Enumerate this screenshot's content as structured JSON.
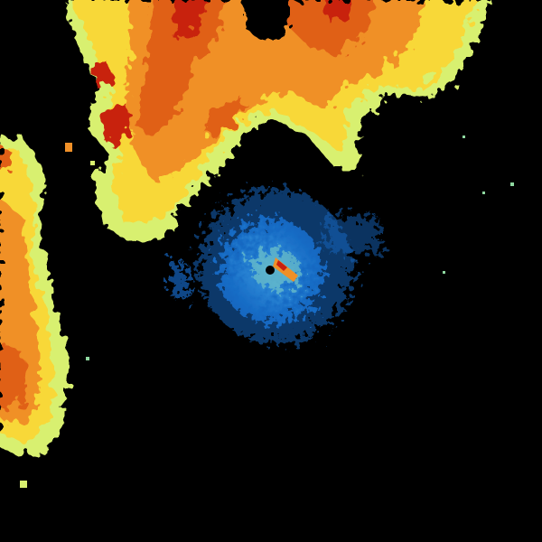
{
  "radar": {
    "background": "#000000",
    "palette": {
      "light_blue": "#2f8fd8",
      "blue": "#1566c0",
      "cyan_green": "#8fd8a0",
      "yellow_green": "#d8f070",
      "yellow": "#f8d838",
      "orange": "#f09028",
      "dark_orange": "#e06018",
      "red": "#c82010"
    },
    "site_marker_color": "#000000"
  }
}
